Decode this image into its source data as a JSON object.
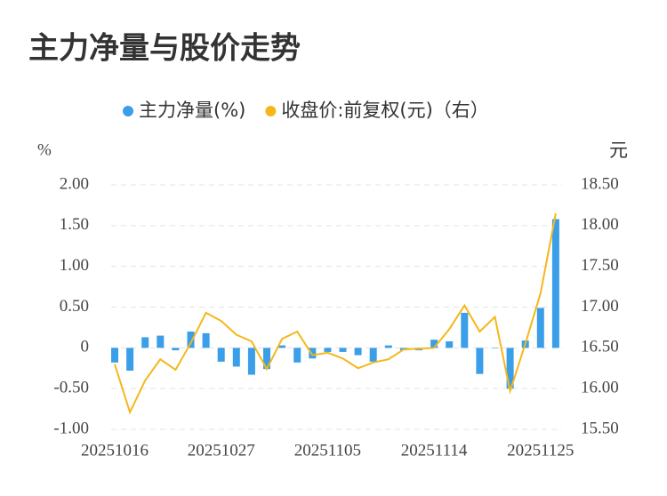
{
  "chart_data": {
    "type": "bar-line",
    "title": "主力净量与股价走势",
    "y_label": "%",
    "y2_label": "元",
    "categories": [
      "20251016",
      null,
      null,
      null,
      null,
      null,
      null,
      "20251027",
      null,
      null,
      null,
      null,
      null,
      null,
      "20251105",
      null,
      null,
      null,
      null,
      null,
      null,
      "20251114",
      null,
      null,
      null,
      null,
      null,
      null,
      "20251125",
      null
    ],
    "series": [
      {
        "name": "主力净量(%)",
        "type": "bar",
        "color": "#3a9ee8",
        "values": [
          -0.18,
          -0.28,
          0.13,
          0.15,
          -0.03,
          0.2,
          0.18,
          -0.17,
          -0.23,
          -0.33,
          -0.26,
          0.03,
          -0.18,
          -0.13,
          -0.05,
          -0.05,
          -0.09,
          -0.17,
          0.03,
          -0.03,
          -0.03,
          0.1,
          0.08,
          0.43,
          -0.32,
          0.0,
          -0.5,
          0.09,
          0.49,
          1.58
        ]
      },
      {
        "name": "收盘价:前复权(元)（右）",
        "type": "line",
        "axis": "y2",
        "color": "#f5b71a",
        "values": [
          16.3,
          15.71,
          16.1,
          16.36,
          16.23,
          16.56,
          16.93,
          16.83,
          16.66,
          16.58,
          16.24,
          16.61,
          16.7,
          16.41,
          16.44,
          16.37,
          16.25,
          16.32,
          16.36,
          16.48,
          16.49,
          16.5,
          16.73,
          17.02,
          16.7,
          16.88,
          15.97,
          16.55,
          17.17,
          18.15
        ]
      }
    ],
    "ylim": [
      -1,
      2
    ],
    "yticks": [
      {
        "value": -1,
        "label": "-1.00"
      },
      {
        "value": -0.5,
        "label": "-0.50"
      },
      0,
      {
        "value": 0.5,
        "label": "0.50"
      },
      {
        "value": 1,
        "label": "1.00"
      },
      {
        "value": 1.5,
        "label": "1.50"
      },
      {
        "value": 2,
        "label": "2.00"
      }
    ],
    "y2lim": [
      15.5,
      18.5
    ],
    "y2ticks": [
      {
        "value": 15.5,
        "label": "15.50"
      },
      {
        "value": 16,
        "label": "16.00"
      },
      {
        "value": 16.5,
        "label": "16.50"
      },
      {
        "value": 17,
        "label": "17.00"
      },
      {
        "value": 17.5,
        "label": "17.50"
      },
      {
        "value": 18,
        "label": "18.00"
      },
      {
        "value": 18.5,
        "label": "18.50"
      }
    ],
    "grid": true,
    "legend": "top"
  }
}
